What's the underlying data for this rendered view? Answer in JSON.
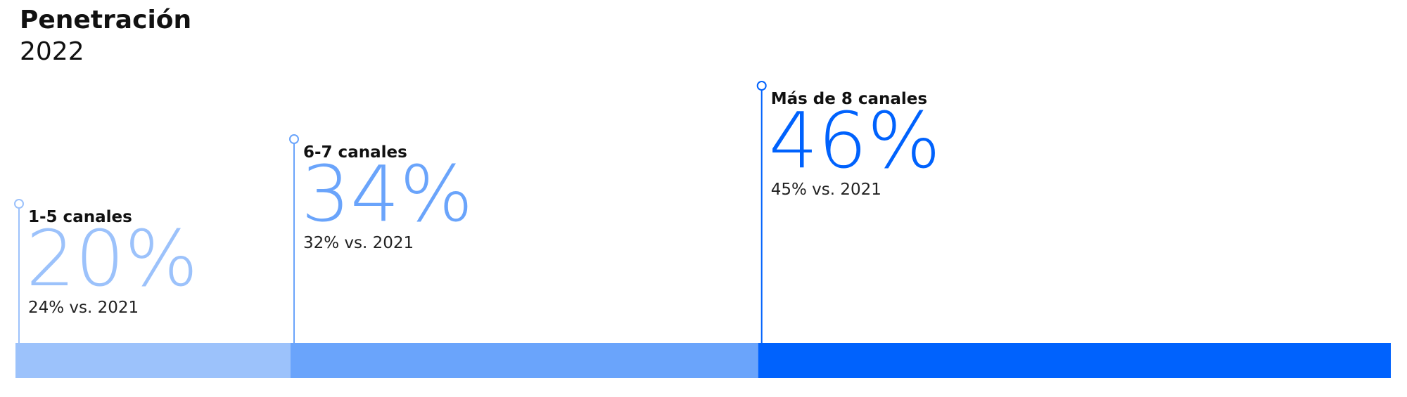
{
  "chart_data": {
    "type": "stacked-bar",
    "title": "Penetración",
    "subtitle": "2022",
    "categories": [
      "1-5 canales",
      "6-7 canales",
      "Más de 8 canales"
    ],
    "values": [
      20,
      34,
      46
    ],
    "value_labels": [
      "20%",
      "34%",
      "46%"
    ],
    "comparison_labels": [
      "24% vs. 2021",
      "32% vs. 2021",
      "45% vs. 2021"
    ],
    "colors": [
      "#9cc2fb",
      "#6aa4fb",
      "#0062fd"
    ]
  }
}
